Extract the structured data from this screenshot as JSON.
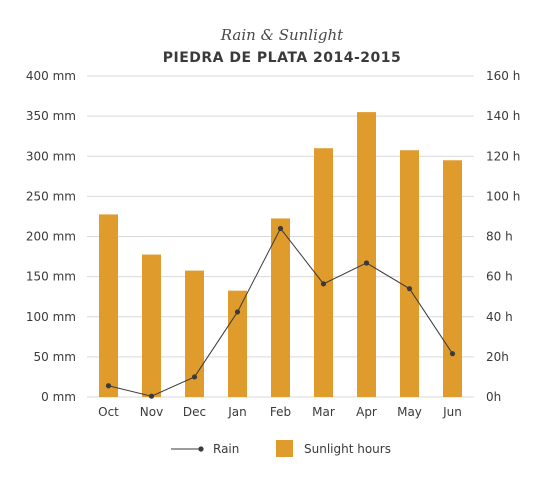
{
  "chart_data": {
    "type": "bar",
    "title": "Rain & Sunlight",
    "subtitle": "PIEDRA DE PLATA 2014-2015",
    "categories": [
      "Oct",
      "Nov",
      "Dec",
      "Jan",
      "Feb",
      "Mar",
      "Apr",
      "May",
      "Jun"
    ],
    "series": [
      {
        "name": "Sunlight hours",
        "type": "bar",
        "axis": "right",
        "unit": "h",
        "values": [
          91,
          71,
          63,
          53,
          89,
          124,
          142,
          123,
          118
        ]
      },
      {
        "name": "Rain",
        "type": "line",
        "axis": "left",
        "unit": "mm",
        "values": [
          14,
          1,
          25,
          106,
          210,
          141,
          167,
          135,
          54
        ]
      }
    ],
    "y_left": {
      "ylim": [
        0,
        400
      ],
      "ticks": [
        "0 mm",
        "50 mm",
        "100 mm",
        "150 mm",
        "200 mm",
        "250 mm",
        "300 mm",
        "350 mm",
        "400 mm"
      ]
    },
    "y_right": {
      "ylim": [
        0,
        160
      ],
      "ticks": [
        "0h",
        "20h",
        "40 h",
        "60 h",
        "80 h",
        "100 h",
        "120 h",
        "140 h",
        "160 h"
      ]
    },
    "grid": true,
    "legend_position": "bottom",
    "colors": {
      "bar": "#E09B2D",
      "line": "#3a3a3a",
      "grid": "#d9d9d9"
    }
  }
}
